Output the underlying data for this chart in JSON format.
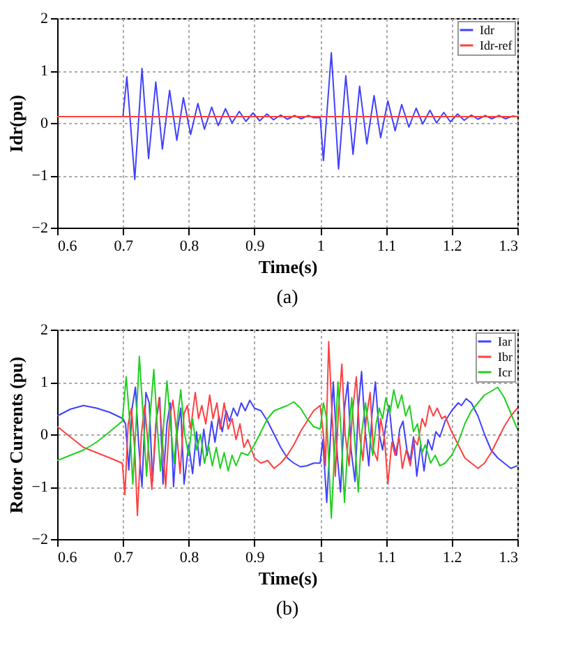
{
  "chart_data": [
    {
      "type": "line",
      "xlabel": "Time(s)",
      "ylabel": "Idr(pu)",
      "annotations": [
        "(a)"
      ],
      "xlim": [
        0.6,
        1.3
      ],
      "xticks": [
        0.6,
        0.7,
        0.8,
        0.9,
        1,
        1.1,
        1.2,
        1.3
      ],
      "ylim": [
        -2,
        2
      ],
      "yticks": [
        -2,
        -1,
        0,
        1,
        2
      ],
      "grid": true,
      "legend": "top right",
      "marker": "none",
      "line_style": "solid",
      "series": [
        {
          "name": "Idr",
          "color": "#4040ff",
          "x": [
            0.6,
            0.7,
            0.706,
            0.718,
            0.729,
            0.739,
            0.75,
            0.76,
            0.771,
            0.782,
            0.792,
            0.803,
            0.814,
            0.824,
            0.835,
            0.845,
            0.856,
            0.866,
            0.877,
            0.887,
            0.898,
            0.908,
            0.919,
            0.929,
            0.94,
            0.95,
            0.961,
            0.971,
            0.982,
            0.99,
            1.0,
            1.005,
            1.017,
            1.028,
            1.039,
            1.05,
            1.06,
            1.071,
            1.082,
            1.092,
            1.103,
            1.114,
            1.124,
            1.135,
            1.146,
            1.156,
            1.167,
            1.177,
            1.188,
            1.198,
            1.209,
            1.219,
            1.23,
            1.24,
            1.251,
            1.261,
            1.272,
            1.282,
            1.293,
            1.3
          ],
          "values": [
            0.12,
            0.12,
            0.88,
            -1.08,
            1.04,
            -0.68,
            0.78,
            -0.5,
            0.62,
            -0.33,
            0.48,
            -0.22,
            0.37,
            -0.12,
            0.3,
            -0.05,
            0.27,
            0.0,
            0.22,
            0.03,
            0.19,
            0.04,
            0.17,
            0.06,
            0.15,
            0.07,
            0.14,
            0.08,
            0.14,
            0.1,
            0.1,
            -0.72,
            1.34,
            -0.88,
            0.9,
            -0.6,
            0.7,
            -0.4,
            0.52,
            -0.28,
            0.42,
            -0.15,
            0.35,
            -0.08,
            0.28,
            -0.02,
            0.24,
            0.0,
            0.2,
            0.02,
            0.17,
            0.05,
            0.15,
            0.07,
            0.14,
            0.08,
            0.14,
            0.08,
            0.13,
            0.12
          ]
        },
        {
          "name": "Idr-ref",
          "color": "#ff4040",
          "x": [
            0.6,
            1.3
          ],
          "values": [
            0.12,
            0.12
          ]
        }
      ]
    },
    {
      "type": "line",
      "xlabel": "Time(s)",
      "ylabel": "Rotor Currents (pu)",
      "annotations": [
        "(b)"
      ],
      "xlim": [
        0.6,
        1.3
      ],
      "xticks": [
        0.6,
        0.7,
        0.8,
        0.9,
        1,
        1.1,
        1.2,
        1.3
      ],
      "ylim": [
        -2,
        2
      ],
      "yticks": [
        -2,
        -1,
        0,
        1,
        2
      ],
      "grid": true,
      "legend": "top right",
      "marker": "none",
      "line_style": "solid",
      "series": [
        {
          "name": "Iar",
          "color": "#4040ff",
          "x": [
            0.6,
            0.62,
            0.64,
            0.66,
            0.68,
            0.7,
            0.704,
            0.709,
            0.714,
            0.719,
            0.724,
            0.729,
            0.735,
            0.74,
            0.745,
            0.751,
            0.756,
            0.761,
            0.767,
            0.772,
            0.777,
            0.782,
            0.788,
            0.793,
            0.8,
            0.806,
            0.812,
            0.817,
            0.823,
            0.828,
            0.835,
            0.84,
            0.846,
            0.851,
            0.857,
            0.862,
            0.868,
            0.874,
            0.88,
            0.886,
            0.893,
            0.9,
            0.91,
            0.92,
            0.93,
            0.94,
            0.95,
            0.96,
            0.97,
            0.98,
            0.99,
            1.0,
            1.004,
            1.01,
            1.015,
            1.02,
            1.026,
            1.031,
            1.037,
            1.042,
            1.047,
            1.053,
            1.058,
            1.063,
            1.069,
            1.074,
            1.079,
            1.084,
            1.09,
            1.095,
            1.1,
            1.105,
            1.11,
            1.116,
            1.121,
            1.126,
            1.132,
            1.137,
            1.142,
            1.147,
            1.153,
            1.158,
            1.164,
            1.17,
            1.176,
            1.182,
            1.19,
            1.2,
            1.21,
            1.215,
            1.222,
            1.23,
            1.24,
            1.25,
            1.26,
            1.27,
            1.28,
            1.29,
            1.3
          ],
          "values": [
            0.35,
            0.48,
            0.55,
            0.5,
            0.42,
            0.3,
            0.2,
            -0.68,
            0.5,
            0.9,
            -0.2,
            -1.0,
            0.8,
            0.6,
            -0.9,
            0.3,
            0.7,
            -0.95,
            0.2,
            0.6,
            -1.0,
            0.0,
            0.5,
            -0.95,
            -0.2,
            -0.75,
            0.05,
            -0.6,
            0.1,
            -0.4,
            0.25,
            -0.15,
            0.35,
            0.05,
            0.45,
            0.25,
            0.5,
            0.35,
            0.6,
            0.45,
            0.65,
            0.5,
            0.45,
            0.25,
            0.0,
            -0.25,
            -0.45,
            -0.55,
            -0.62,
            -0.6,
            -0.55,
            -0.55,
            -0.1,
            -1.3,
            -0.2,
            1.0,
            -0.4,
            -1.1,
            0.5,
            1.0,
            -0.3,
            -0.9,
            0.5,
            1.2,
            0.0,
            -0.6,
            0.4,
            1.0,
            0.0,
            -0.3,
            0.2,
            0.55,
            -0.1,
            -0.4,
            0.1,
            0.25,
            -0.3,
            -0.5,
            -0.05,
            -0.8,
            -0.2,
            -0.7,
            -0.1,
            -0.3,
            0.05,
            -0.05,
            0.25,
            0.45,
            0.6,
            0.55,
            0.68,
            0.6,
            0.35,
            0.0,
            -0.3,
            -0.45,
            -0.55,
            -0.65,
            -0.6
          ]
        },
        {
          "name": "Ibr",
          "color": "#ff4040",
          "x": [
            0.6,
            0.62,
            0.64,
            0.66,
            0.68,
            0.699,
            0.703,
            0.708,
            0.713,
            0.718,
            0.722,
            0.728,
            0.733,
            0.739,
            0.744,
            0.75,
            0.755,
            0.76,
            0.765,
            0.771,
            0.776,
            0.782,
            0.787,
            0.793,
            0.798,
            0.803,
            0.81,
            0.815,
            0.82,
            0.826,
            0.832,
            0.837,
            0.843,
            0.848,
            0.854,
            0.86,
            0.866,
            0.872,
            0.878,
            0.884,
            0.89,
            0.9,
            0.91,
            0.92,
            0.93,
            0.94,
            0.95,
            0.96,
            0.97,
            0.98,
            0.99,
            1.0,
            1.005,
            1.008,
            1.013,
            1.018,
            1.023,
            1.028,
            1.033,
            1.038,
            1.044,
            1.049,
            1.055,
            1.06,
            1.065,
            1.07,
            1.076,
            1.081,
            1.087,
            1.092,
            1.098,
            1.103,
            1.109,
            1.114,
            1.12,
            1.125,
            1.131,
            1.137,
            1.143,
            1.148,
            1.155,
            1.16,
            1.166,
            1.172,
            1.178,
            1.185,
            1.19,
            1.2,
            1.21,
            1.22,
            1.23,
            1.24,
            1.25,
            1.26,
            1.27,
            1.28,
            1.29,
            1.3
          ],
          "values": [
            0.15,
            -0.05,
            -0.25,
            -0.35,
            -0.45,
            -0.55,
            -1.15,
            0.2,
            0.5,
            -0.3,
            -1.55,
            0.0,
            0.55,
            -0.3,
            -1.05,
            0.2,
            0.7,
            -0.1,
            -1.0,
            0.3,
            0.65,
            0.0,
            -0.75,
            0.4,
            0.55,
            0.1,
            0.8,
            0.3,
            0.55,
            0.2,
            0.75,
            0.3,
            0.6,
            0.1,
            0.6,
            0.1,
            0.3,
            -0.1,
            0.2,
            -0.25,
            -0.1,
            -0.45,
            -0.55,
            -0.5,
            -0.65,
            -0.55,
            -0.4,
            -0.2,
            0.05,
            0.25,
            0.45,
            0.55,
            0.0,
            -0.6,
            1.77,
            0.4,
            -0.8,
            0.5,
            1.34,
            0.0,
            -0.6,
            0.4,
            1.1,
            0.0,
            -0.5,
            0.3,
            0.8,
            -0.3,
            -0.5,
            0.3,
            -0.1,
            -0.95,
            -0.15,
            -0.4,
            -0.05,
            -0.65,
            -0.3,
            -0.6,
            -0.1,
            -0.2,
            0.3,
            0.15,
            0.55,
            0.35,
            0.5,
            0.3,
            0.35,
            0.05,
            -0.2,
            -0.45,
            -0.55,
            -0.65,
            -0.55,
            -0.35,
            -0.1,
            0.15,
            0.35,
            0.5
          ]
        },
        {
          "name": "Icr",
          "color": "#20d020",
          "x": [
            0.6,
            0.62,
            0.64,
            0.66,
            0.68,
            0.699,
            0.705,
            0.71,
            0.715,
            0.72,
            0.725,
            0.731,
            0.736,
            0.741,
            0.747,
            0.752,
            0.757,
            0.762,
            0.767,
            0.773,
            0.778,
            0.783,
            0.788,
            0.794,
            0.8,
            0.806,
            0.812,
            0.818,
            0.824,
            0.83,
            0.836,
            0.842,
            0.848,
            0.854,
            0.86,
            0.866,
            0.872,
            0.88,
            0.89,
            0.9,
            0.91,
            0.92,
            0.93,
            0.94,
            0.95,
            0.96,
            0.97,
            0.98,
            0.99,
            1.0,
            1.005,
            1.01,
            1.017,
            1.022,
            1.027,
            1.032,
            1.037,
            1.042,
            1.048,
            1.053,
            1.058,
            1.063,
            1.069,
            1.075,
            1.08,
            1.085,
            1.09,
            1.095,
            1.1,
            1.106,
            1.112,
            1.118,
            1.124,
            1.13,
            1.136,
            1.142,
            1.148,
            1.155,
            1.16,
            1.168,
            1.175,
            1.182,
            1.19,
            1.2,
            1.21,
            1.22,
            1.23,
            1.24,
            1.25,
            1.26,
            1.27,
            1.28,
            1.29,
            1.3
          ],
          "values": [
            -0.5,
            -0.4,
            -0.3,
            -0.15,
            0.05,
            0.25,
            1.1,
            0.3,
            -0.95,
            0.2,
            1.49,
            0.3,
            -0.8,
            0.3,
            1.24,
            0.2,
            -0.7,
            0.2,
            1.02,
            0.1,
            -0.55,
            0.3,
            0.85,
            0.0,
            -0.4,
            0.3,
            -0.3,
            0.0,
            -0.55,
            -0.2,
            -0.6,
            -0.25,
            -0.65,
            -0.35,
            -0.7,
            -0.4,
            -0.6,
            -0.35,
            -0.4,
            -0.2,
            0.05,
            0.3,
            0.45,
            0.5,
            0.55,
            0.62,
            0.5,
            0.3,
            0.15,
            0.1,
            0.6,
            0.3,
            -1.6,
            -0.3,
            1.0,
            0.0,
            -1.3,
            -0.2,
            0.7,
            -0.2,
            -1.1,
            0.0,
            0.6,
            0.0,
            -0.4,
            0.2,
            0.5,
            0.3,
            0.7,
            0.4,
            0.85,
            0.5,
            0.75,
            0.35,
            0.55,
            0.05,
            0.2,
            -0.35,
            -0.2,
            -0.55,
            -0.4,
            -0.6,
            -0.55,
            -0.4,
            -0.15,
            0.2,
            0.45,
            0.6,
            0.75,
            0.82,
            0.9,
            0.7,
            0.4,
            0.1
          ]
        }
      ]
    }
  ]
}
